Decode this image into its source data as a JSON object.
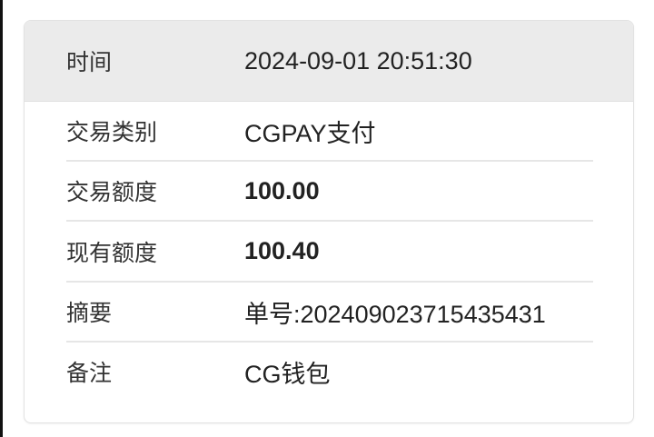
{
  "rows": [
    {
      "label": "时间",
      "value": "2024-09-01 20:51:30"
    },
    {
      "label": "交易类别",
      "value": "CGPAY支付"
    },
    {
      "label": "交易额度",
      "value": "100.00"
    },
    {
      "label": "现有额度",
      "value": "100.40"
    },
    {
      "label": "摘要",
      "value": "单号:202409023715435431"
    },
    {
      "label": "备注",
      "value": "CG钱包"
    }
  ]
}
